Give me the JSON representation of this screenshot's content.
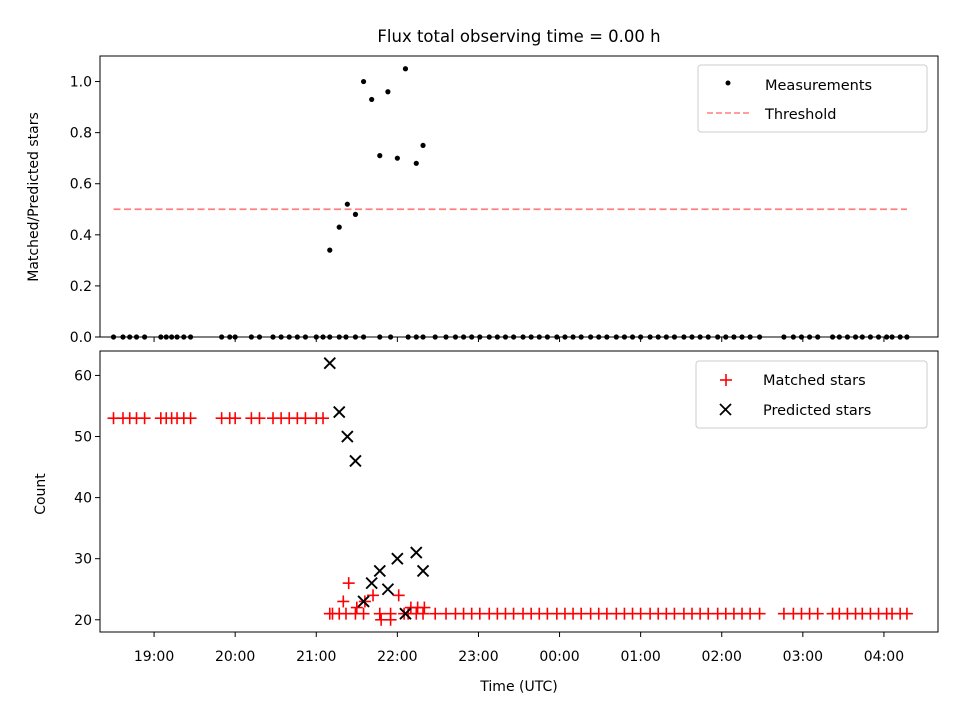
{
  "chart_data": [
    {
      "type": "scatter",
      "title": "Flux total observing time = 0.00 h",
      "xlabel": "",
      "ylabel": "Matched/Predicted stars",
      "xlim": [
        "18:20",
        "04:40"
      ],
      "ylim": [
        0,
        1.1
      ],
      "yticks": [
        "0.0",
        "0.2",
        "0.4",
        "0.6",
        "0.8",
        "1.0"
      ],
      "legend_position": "top-right",
      "grid": false,
      "series": [
        {
          "name": "Measurements",
          "kind": "points",
          "color": "#000000",
          "x": [
            "18:30",
            "18:37",
            "18:42",
            "18:47",
            "18:53",
            "19:05",
            "19:09",
            "19:13",
            "19:17",
            "19:22",
            "19:27",
            "19:50",
            "19:56",
            "20:00",
            "20:12",
            "20:18",
            "20:28",
            "20:34",
            "20:40",
            "20:46",
            "20:52",
            "21:00",
            "21:05",
            "21:10",
            "21:17",
            "21:22",
            "21:29",
            "21:35",
            "21:47",
            "21:55",
            "22:08",
            "22:14",
            "22:19",
            "22:28",
            "22:36",
            "22:43",
            "22:49",
            "22:55",
            "23:01",
            "23:08",
            "23:14",
            "23:20",
            "23:26",
            "23:33",
            "23:39",
            "23:45",
            "23:51",
            "23:58",
            "00:04",
            "00:10",
            "00:16",
            "00:23",
            "00:29",
            "00:35",
            "00:42",
            "00:48",
            "00:54",
            "01:00",
            "01:07",
            "01:13",
            "01:19",
            "01:25",
            "01:32",
            "01:38",
            "01:44",
            "01:50",
            "01:57",
            "02:03",
            "02:09",
            "02:15",
            "02:21",
            "02:28",
            "02:46",
            "02:53",
            "02:59",
            "03:05",
            "03:11",
            "03:22",
            "03:27",
            "03:33",
            "03:39",
            "03:44",
            "03:50",
            "03:56",
            "04:02",
            "04:06",
            "04:12",
            "04:17",
            "21:10",
            "21:17",
            "21:23",
            "21:29",
            "21:35",
            "21:41",
            "21:47",
            "21:53",
            "22:00",
            "22:06",
            "22:14",
            "22:19"
          ],
          "y": [
            0,
            0,
            0,
            0,
            0,
            0,
            0,
            0,
            0,
            0,
            0,
            0,
            0,
            0,
            0,
            0,
            0,
            0,
            0,
            0,
            0,
            0,
            0,
            0,
            0,
            0,
            0,
            0,
            0,
            0,
            0,
            0,
            0,
            0,
            0,
            0,
            0,
            0,
            0,
            0,
            0,
            0,
            0,
            0,
            0,
            0,
            0,
            0,
            0,
            0,
            0,
            0,
            0,
            0,
            0,
            0,
            0,
            0,
            0,
            0,
            0,
            0,
            0,
            0,
            0,
            0,
            0,
            0,
            0,
            0,
            0,
            0,
            0,
            0,
            0,
            0,
            0,
            0,
            0,
            0,
            0,
            0,
            0,
            0,
            0,
            0,
            0,
            0,
            0.34,
            0.43,
            0.52,
            0.48,
            1.0,
            0.93,
            0.71,
            0.96,
            0.7,
            1.05,
            0.68,
            0.75
          ]
        },
        {
          "name": "Threshold",
          "kind": "dashed-line",
          "color": "#ff7f7f",
          "x": [
            "18:30",
            "04:17"
          ],
          "y": [
            0.5,
            0.5
          ]
        }
      ]
    },
    {
      "type": "scatter",
      "title": "",
      "xlabel": "Time (UTC)",
      "ylabel": "Count",
      "xlim": [
        "18:20",
        "04:40"
      ],
      "ylim": [
        18,
        64
      ],
      "xticks": [
        "19:00",
        "20:00",
        "21:00",
        "22:00",
        "23:00",
        "00:00",
        "01:00",
        "02:00",
        "03:00",
        "04:00"
      ],
      "yticks": [
        "20",
        "30",
        "40",
        "50",
        "60"
      ],
      "legend_position": "top-right",
      "grid": false,
      "series": [
        {
          "name": "Matched stars",
          "marker": "plus",
          "color": "#ff0000",
          "x": [
            "18:30",
            "18:37",
            "18:42",
            "18:47",
            "18:53",
            "19:05",
            "19:09",
            "19:13",
            "19:17",
            "19:22",
            "19:27",
            "19:50",
            "19:56",
            "20:00",
            "20:12",
            "20:18",
            "20:28",
            "20:34",
            "20:40",
            "20:46",
            "20:52",
            "21:00",
            "21:05",
            "21:10",
            "21:17",
            "21:22",
            "21:29",
            "21:35",
            "21:47",
            "21:55",
            "22:08",
            "22:14",
            "22:19",
            "22:28",
            "22:36",
            "22:43",
            "22:49",
            "22:55",
            "23:01",
            "23:08",
            "23:14",
            "23:20",
            "23:26",
            "23:33",
            "23:39",
            "23:45",
            "23:51",
            "23:58",
            "00:04",
            "00:10",
            "00:16",
            "00:23",
            "00:29",
            "00:35",
            "00:42",
            "00:48",
            "00:54",
            "01:00",
            "01:07",
            "01:13",
            "01:19",
            "01:25",
            "01:32",
            "01:38",
            "01:44",
            "01:50",
            "01:57",
            "02:03",
            "02:09",
            "02:15",
            "02:21",
            "02:28",
            "02:46",
            "02:53",
            "02:59",
            "03:05",
            "03:11",
            "03:22",
            "03:27",
            "03:33",
            "03:39",
            "03:44",
            "03:50",
            "03:56",
            "04:02",
            "04:06",
            "04:12",
            "04:17",
            "21:12",
            "21:20",
            "21:24",
            "21:30",
            "21:36",
            "21:42",
            "21:48",
            "21:55",
            "22:01",
            "22:05",
            "22:10",
            "22:15",
            "22:20"
          ],
          "y": [
            53,
            53,
            53,
            53,
            53,
            53,
            53,
            53,
            53,
            53,
            53,
            53,
            53,
            53,
            53,
            53,
            53,
            53,
            53,
            53,
            53,
            53,
            53,
            21,
            21,
            21,
            21,
            21,
            21,
            21,
            21,
            21,
            21,
            21,
            21,
            21,
            21,
            21,
            21,
            21,
            21,
            21,
            21,
            21,
            21,
            21,
            21,
            21,
            21,
            21,
            21,
            21,
            21,
            21,
            21,
            21,
            21,
            21,
            21,
            21,
            21,
            21,
            21,
            21,
            21,
            21,
            21,
            21,
            21,
            21,
            21,
            21,
            21,
            21,
            21,
            21,
            21,
            21,
            21,
            21,
            21,
            21,
            21,
            21,
            21,
            21,
            21,
            21,
            21,
            23,
            26,
            22,
            23,
            24,
            20,
            20,
            24,
            21,
            22,
            22,
            22
          ]
        },
        {
          "name": "Predicted stars",
          "marker": "x",
          "color": "#000000",
          "x": [
            "21:10",
            "21:17",
            "21:23",
            "21:29",
            "21:35",
            "21:41",
            "21:47",
            "21:53",
            "22:00",
            "22:06",
            "22:14",
            "22:19"
          ],
          "y": [
            62,
            54,
            50,
            46,
            23,
            26,
            28,
            25,
            30,
            21,
            31,
            28
          ]
        }
      ]
    }
  ]
}
